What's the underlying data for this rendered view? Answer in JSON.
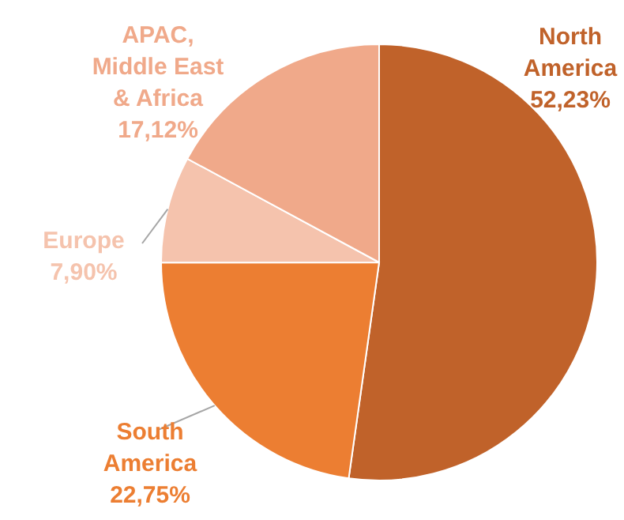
{
  "chart_data": {
    "type": "pie",
    "categories": [
      "North America",
      "South America",
      "Europe",
      "APAC, Middle East & Africa"
    ],
    "values": [
      52.23,
      22.75,
      7.9,
      17.12
    ],
    "value_labels": [
      "52,23%",
      "22,75%",
      "7,90%",
      "17,12%"
    ],
    "colors": [
      "#c0622a",
      "#ec7e32",
      "#f5c3ad",
      "#f0a98a"
    ],
    "legend": false
  }
}
